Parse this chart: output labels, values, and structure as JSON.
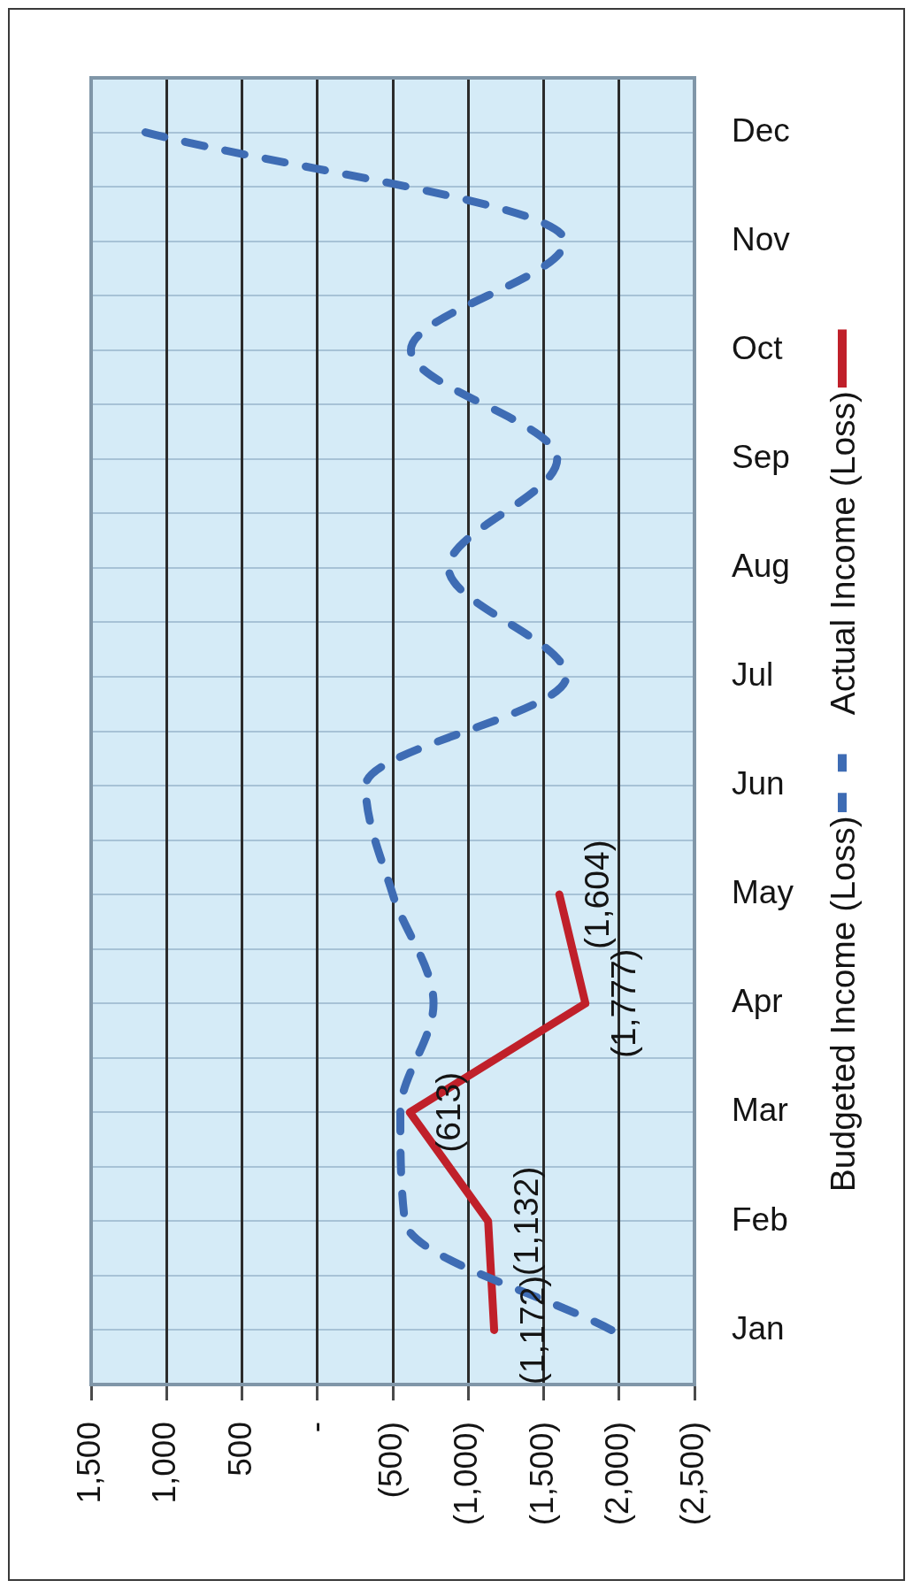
{
  "chart_data": {
    "type": "line",
    "orientation": "horizontal",
    "categories": [
      "Dec",
      "Nov",
      "Oct",
      "Sep",
      "Aug",
      "Jul",
      "Jun",
      "May",
      "Apr",
      "Mar",
      "Feb",
      "Jan"
    ],
    "series": [
      {
        "name": "Budgeted Income (Loss)",
        "color": "#3e6cb4",
        "line_style": "dashed",
        "values": [
          1140,
          -1640,
          -620,
          -1590,
          -870,
          -1650,
          -320,
          -500,
          -770,
          -550,
          -580,
          -1950
        ]
      },
      {
        "name": "Actual Income (Loss)",
        "color": "#c0202a",
        "line_style": "solid",
        "values": [
          null,
          null,
          null,
          null,
          null,
          null,
          null,
          -1604,
          -1777,
          -613,
          -1132,
          -1172
        ],
        "value_labels": [
          null,
          null,
          null,
          null,
          null,
          null,
          null,
          "(1,604)",
          "(1,777)",
          "(613)",
          "(1,132)",
          "(1,172)"
        ]
      }
    ],
    "xlim": [
      1500,
      -2500
    ],
    "xticks": [
      {
        "value": 1500,
        "label": "1,500"
      },
      {
        "value": 1000,
        "label": "1,000"
      },
      500,
      {
        "value": 0,
        "label": "-"
      },
      {
        "value": -500,
        "label": "(500)"
      },
      {
        "value": -1000,
        "label": "(1,000)"
      },
      {
        "value": -1500,
        "label": "(1,500)"
      },
      {
        "value": -2000,
        "label": "(2,000)"
      },
      {
        "value": -2500,
        "label": "(2,500)"
      }
    ],
    "grid": true,
    "legend": "right"
  }
}
